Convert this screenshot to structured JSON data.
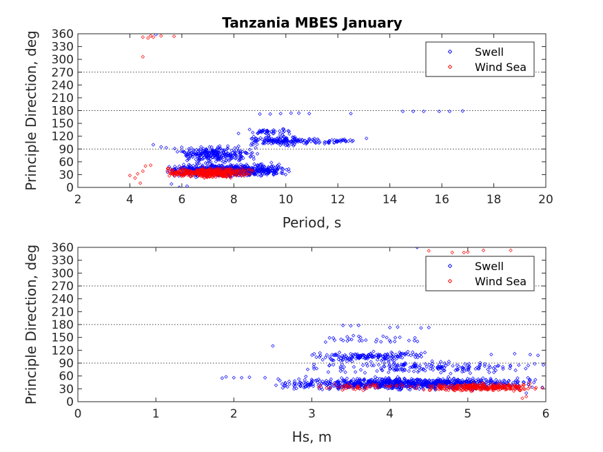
{
  "colors": {
    "swell": "#0000ff",
    "wind_sea": "#ff0000",
    "axis": "#262626",
    "refline": "#000000"
  },
  "chart_data": [
    {
      "type": "scatter",
      "title": "Tanzania MBES January",
      "xlabel": "Period, s",
      "ylabel": "Principle Direction, deg",
      "xlim": [
        2,
        20
      ],
      "ylim": [
        0,
        360
      ],
      "xticks": [
        2,
        4,
        6,
        8,
        10,
        12,
        14,
        16,
        18,
        20
      ],
      "yticks": [
        0,
        30,
        60,
        90,
        120,
        150,
        180,
        210,
        240,
        270,
        300,
        330,
        360
      ],
      "reference_lines": [
        90,
        180,
        270
      ],
      "legend": {
        "location": "top-right",
        "entries": [
          "Swell",
          "Wind Sea"
        ]
      },
      "series": [
        {
          "name": "Swell",
          "marker": "diamond",
          "clusters": [
            {
              "x": [
                5.4,
                10.2
              ],
              "y": [
                20,
                60
              ],
              "n": 700
            },
            {
              "x": [
                5.6,
                9.0
              ],
              "y": [
                50,
                105
              ],
              "n": 260
            },
            {
              "x": [
                8.5,
                11.2
              ],
              "y": [
                95,
                125
              ],
              "n": 150
            },
            {
              "x": [
                8.0,
                10.5
              ],
              "y": [
                120,
                140
              ],
              "n": 40
            },
            {
              "x": [
                11.0,
                12.8
              ],
              "y": [
                100,
                118
              ],
              "n": 40
            }
          ],
          "points": [
            [
              4.9,
              100
            ],
            [
              5.2,
              95
            ],
            [
              5.4,
              93
            ],
            [
              5.0,
              358
            ],
            [
              9.0,
              172
            ],
            [
              9.4,
              172
            ],
            [
              9.8,
              173
            ],
            [
              10.2,
              174
            ],
            [
              10.5,
              174
            ],
            [
              10.9,
              173
            ],
            [
              12.5,
              173
            ],
            [
              13.1,
              115
            ],
            [
              14.5,
              178
            ],
            [
              14.9,
              178
            ],
            [
              15.3,
              178
            ],
            [
              15.9,
              178
            ],
            [
              16.3,
              178
            ],
            [
              16.8,
              179
            ],
            [
              6.2,
              3
            ],
            [
              5.9,
              0
            ],
            [
              5.6,
              8
            ]
          ]
        },
        {
          "name": "Wind Sea",
          "marker": "diamond",
          "clusters": [
            {
              "x": [
                5.3,
                8.8
              ],
              "y": [
                20,
                48
              ],
              "n": 420
            }
          ],
          "points": [
            [
              4.0,
              28
            ],
            [
              4.2,
              22
            ],
            [
              4.3,
              32
            ],
            [
              4.5,
              38
            ],
            [
              4.6,
              50
            ],
            [
              4.8,
              52
            ],
            [
              4.4,
              10
            ],
            [
              4.5,
              352
            ],
            [
              4.7,
              350
            ],
            [
              4.8,
              355
            ],
            [
              4.9,
              352
            ],
            [
              5.2,
              355
            ],
            [
              5.7,
              354
            ],
            [
              4.5,
              306
            ]
          ]
        }
      ]
    },
    {
      "type": "scatter",
      "title": "",
      "xlabel": "Hs, m",
      "ylabel": "Principle Direction, deg",
      "xlim": [
        0,
        6
      ],
      "ylim": [
        0,
        360
      ],
      "xticks": [
        0,
        1,
        2,
        3,
        4,
        5,
        6
      ],
      "yticks": [
        0,
        30,
        60,
        90,
        120,
        150,
        180,
        210,
        240,
        270,
        300,
        330,
        360
      ],
      "reference_lines": [
        90,
        180,
        270
      ],
      "legend": {
        "location": "top-right",
        "entries": [
          "Swell",
          "Wind Sea"
        ]
      },
      "series": [
        {
          "name": "Swell",
          "marker": "diamond",
          "clusters": [
            {
              "x": [
                2.5,
                6.0
              ],
              "y": [
                25,
                60
              ],
              "n": 900
            },
            {
              "x": [
                2.9,
                4.5
              ],
              "y": [
                90,
                120
              ],
              "n": 160
            },
            {
              "x": [
                2.8,
                6.0
              ],
              "y": [
                60,
                100
              ],
              "n": 180
            },
            {
              "x": [
                3.0,
                4.5
              ],
              "y": [
                130,
                160
              ],
              "n": 30
            }
          ],
          "points": [
            [
              1.85,
              55
            ],
            [
              1.9,
              58
            ],
            [
              2.0,
              56
            ],
            [
              2.1,
              56
            ],
            [
              2.2,
              57
            ],
            [
              2.4,
              56
            ],
            [
              2.5,
              130
            ],
            [
              3.4,
              178
            ],
            [
              3.5,
              177
            ],
            [
              3.6,
              178
            ],
            [
              4.0,
              173
            ],
            [
              4.1,
              174
            ],
            [
              4.4,
              172
            ],
            [
              4.5,
              173
            ],
            [
              4.35,
              360
            ],
            [
              5.3,
              110
            ],
            [
              5.6,
              112
            ],
            [
              5.8,
              110
            ],
            [
              5.9,
              108
            ],
            [
              5.75,
              20
            ]
          ]
        },
        {
          "name": "Wind Sea",
          "marker": "diamond",
          "clusters": [
            {
              "x": [
                4.4,
                6.0
              ],
              "y": [
                22,
                45
              ],
              "n": 260
            },
            {
              "x": [
                3.0,
                4.4
              ],
              "y": [
                25,
                45
              ],
              "n": 50
            }
          ],
          "points": [
            [
              4.5,
              352
            ],
            [
              4.8,
              348
            ],
            [
              4.95,
              348
            ],
            [
              5.0,
              349
            ],
            [
              5.2,
              353
            ],
            [
              5.55,
              353
            ],
            [
              5.7,
              8
            ],
            [
              5.75,
              12
            ]
          ]
        }
      ]
    }
  ]
}
